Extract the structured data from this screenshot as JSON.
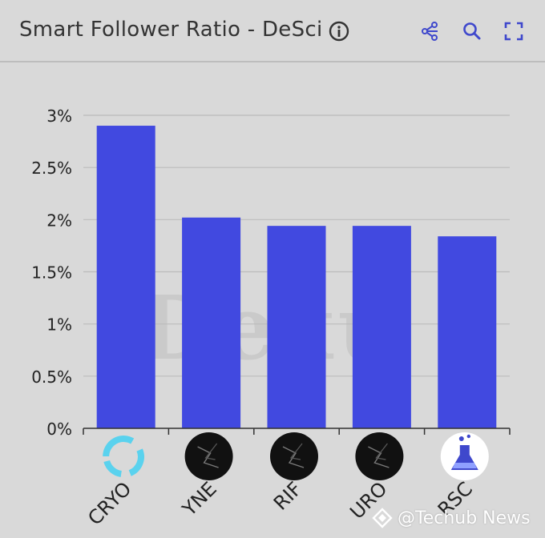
{
  "header": {
    "title": "Smart Follower Ratio - DeSci",
    "icons": [
      "info-icon",
      "share-icon",
      "zoom-icon",
      "fullscreen-icon"
    ]
  },
  "chart_data": {
    "type": "bar",
    "categories": [
      "CRYO",
      "YNE",
      "RIF",
      "URO",
      "RSC"
    ],
    "values": [
      2.9,
      2.02,
      1.94,
      1.94,
      1.84
    ],
    "ylim": [
      0,
      3
    ],
    "yticks": [
      "0%",
      "0.5%",
      "1%",
      "1.5%",
      "2%",
      "2.5%",
      "3%"
    ],
    "grid": true,
    "bar_color": "#4149e0"
  },
  "watermark": {
    "text": "@Techub News",
    "background_text": "Dexu"
  }
}
